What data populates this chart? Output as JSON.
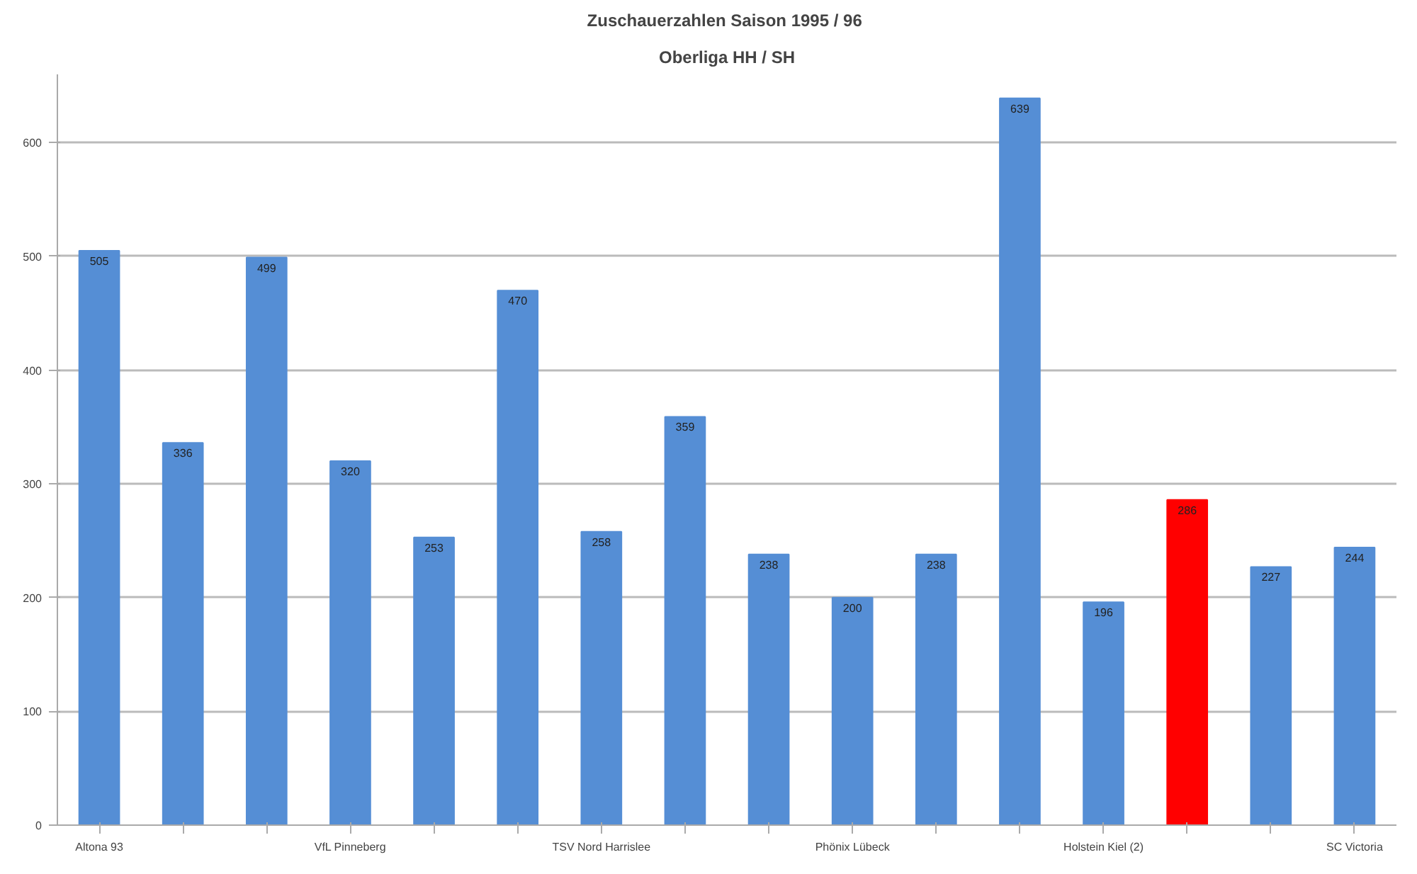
{
  "chart_data": {
    "type": "bar",
    "title": "Zuschauerzahlen Saison  1995 / 96",
    "subtitle": "Oberliga HH / SH",
    "categories": [
      "Altona 93",
      null,
      null,
      "VfL Pinneberg",
      null,
      null,
      "TSV Nord Harrislee",
      null,
      null,
      "Phönix Lübeck",
      null,
      null,
      "Holstein Kiel (2)",
      null,
      null,
      "SC Victoria"
    ],
    "values": [
      505,
      336,
      499,
      320,
      253,
      470,
      258,
      359,
      238,
      200,
      238,
      639,
      196,
      286,
      227,
      244
    ],
    "colors": [
      "#558ed5",
      "#558ed5",
      "#558ed5",
      "#558ed5",
      "#558ed5",
      "#558ed5",
      "#558ed5",
      "#558ed5",
      "#558ed5",
      "#558ed5",
      "#558ed5",
      "#558ed5",
      "#558ed5",
      "#ff0000",
      "#558ed5",
      "#558ed5"
    ],
    "data_labels": true,
    "ylim": [
      0,
      660
    ],
    "yticks": [
      0,
      100,
      200,
      300,
      400,
      500,
      600
    ],
    "grid": "y"
  }
}
